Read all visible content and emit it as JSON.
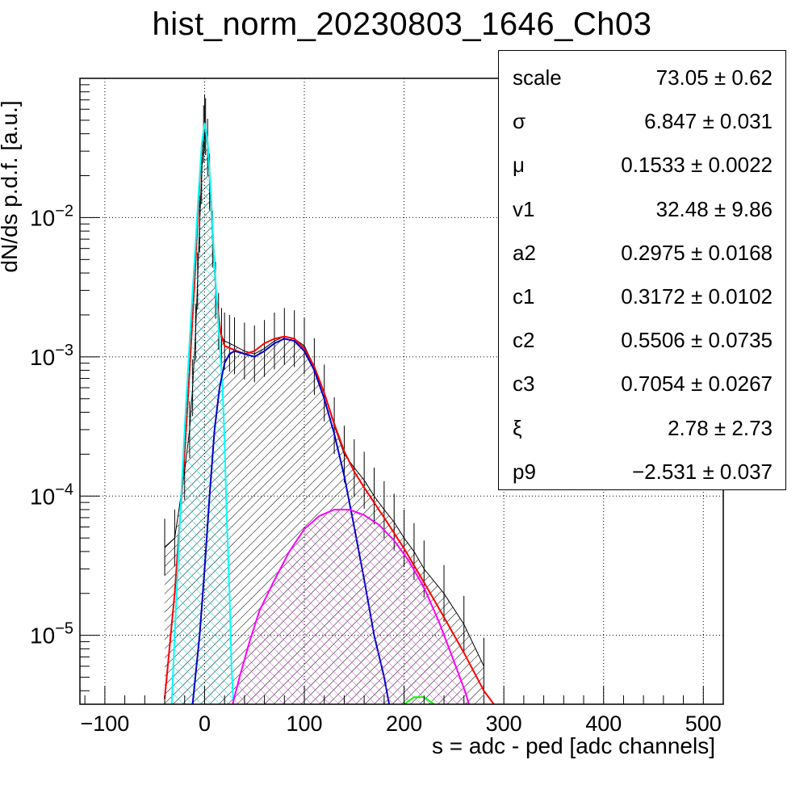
{
  "chart_data": {
    "type": "histogram",
    "title": "hist_norm_20230803_1646_Ch03",
    "xlabel": "s = adc - ped [adc channels]",
    "ylabel": "dN/ds p.d.f. [a.u.]",
    "xlim": [
      -125,
      520
    ],
    "ylim": [
      3.2e-06,
      0.1
    ],
    "yscale": "log",
    "grid": true,
    "x_ticks": [
      -100,
      0,
      100,
      200,
      300,
      400,
      500
    ],
    "x_tick_labels": [
      "−100",
      "0",
      "100",
      "200",
      "300",
      "400",
      "500"
    ],
    "y_ticks": [
      1e-05,
      0.0001,
      0.001,
      0.01
    ],
    "y_tick_labels": [
      {
        "base": "10",
        "exp": "−5"
      },
      {
        "base": "10",
        "exp": "−4"
      },
      {
        "base": "10",
        "exp": "−3"
      },
      {
        "base": "10",
        "exp": "−2"
      }
    ],
    "histogram": {
      "color": "#000000",
      "points": [
        [
          -40,
          4.3e-05
        ],
        [
          -30,
          5e-05
        ],
        [
          -20,
          0.00015
        ],
        [
          -15,
          0.0003
        ],
        [
          -12,
          0.0006
        ],
        [
          -9,
          0.0015
        ],
        [
          -7,
          0.0035
        ],
        [
          -5,
          0.009
        ],
        [
          -3,
          0.02
        ],
        [
          -1,
          0.04
        ],
        [
          0,
          0.048
        ],
        [
          1,
          0.045
        ],
        [
          3,
          0.032
        ],
        [
          5,
          0.018
        ],
        [
          8,
          0.007
        ],
        [
          11,
          0.003
        ],
        [
          14,
          0.0018
        ],
        [
          17,
          0.0014
        ],
        [
          20,
          0.0013
        ],
        [
          25,
          0.00125
        ],
        [
          30,
          0.0012
        ],
        [
          40,
          0.0011
        ],
        [
          50,
          0.00105
        ],
        [
          60,
          0.00115
        ],
        [
          70,
          0.0013
        ],
        [
          80,
          0.0014
        ],
        [
          90,
          0.00135
        ],
        [
          100,
          0.0012
        ],
        [
          110,
          0.00085
        ],
        [
          120,
          0.00055
        ],
        [
          130,
          0.00032
        ],
        [
          140,
          0.0002
        ],
        [
          150,
          0.00016
        ],
        [
          160,
          0.00013
        ],
        [
          170,
          0.0001
        ],
        [
          180,
          8e-05
        ],
        [
          190,
          6.5e-05
        ],
        [
          200,
          5e-05
        ],
        [
          210,
          4e-05
        ],
        [
          220,
          3e-05
        ],
        [
          240,
          2e-05
        ],
        [
          260,
          1.2e-05
        ],
        [
          280,
          6e-06
        ]
      ]
    },
    "series": [
      {
        "color": "#ff0000",
        "points": [
          [
            -40,
            3.5e-06
          ],
          [
            -30,
            2e-05
          ],
          [
            -20,
            0.0002
          ],
          [
            -15,
            0.0008
          ],
          [
            -10,
            0.0035
          ],
          [
            -6,
            0.013
          ],
          [
            -3,
            0.032
          ],
          [
            0,
            0.048
          ],
          [
            3,
            0.035
          ],
          [
            6,
            0.016
          ],
          [
            9,
            0.006
          ],
          [
            12,
            0.0026
          ],
          [
            16,
            0.0015
          ],
          [
            20,
            0.0012
          ],
          [
            30,
            0.00112
          ],
          [
            40,
            0.00105
          ],
          [
            50,
            0.0011
          ],
          [
            60,
            0.00125
          ],
          [
            70,
            0.00135
          ],
          [
            80,
            0.0014
          ],
          [
            90,
            0.00135
          ],
          [
            100,
            0.00115
          ],
          [
            110,
            0.00085
          ],
          [
            120,
            0.00055
          ],
          [
            130,
            0.00033
          ],
          [
            140,
            0.00021
          ],
          [
            150,
            0.00015
          ],
          [
            160,
            0.000115
          ],
          [
            180,
            7e-05
          ],
          [
            200,
            4.2e-05
          ],
          [
            220,
            2.4e-05
          ],
          [
            240,
            1.35e-05
          ],
          [
            260,
            7.5e-06
          ],
          [
            280,
            4e-06
          ],
          [
            290,
            3e-06
          ]
        ]
      },
      {
        "color": "#00ffff",
        "hatch": "#00d8d8",
        "points": [
          [
            -33,
            3.2e-06
          ],
          [
            -30,
            1e-05
          ],
          [
            -25,
            6e-05
          ],
          [
            -20,
            0.0003
          ],
          [
            -15,
            0.0013
          ],
          [
            -10,
            0.005
          ],
          [
            -6,
            0.015
          ],
          [
            -3,
            0.033
          ],
          [
            0,
            0.048
          ],
          [
            3,
            0.035
          ],
          [
            6,
            0.016
          ],
          [
            9,
            0.006
          ],
          [
            12,
            0.0026
          ],
          [
            15,
            0.0013
          ],
          [
            18,
            0.0006
          ],
          [
            20,
            0.00025
          ],
          [
            22,
            8e-05
          ],
          [
            25,
            2e-05
          ],
          [
            27,
            6e-06
          ],
          [
            29,
            3.2e-06
          ]
        ]
      },
      {
        "color": "#0000cc",
        "points": [
          [
            -12,
            3.2e-06
          ],
          [
            -5,
            1e-05
          ],
          [
            0,
            3e-05
          ],
          [
            5,
            0.0001
          ],
          [
            10,
            0.0003
          ],
          [
            15,
            0.0006
          ],
          [
            20,
            0.0009
          ],
          [
            25,
            0.00105
          ],
          [
            30,
            0.0011
          ],
          [
            40,
            0.00105
          ],
          [
            50,
            0.001
          ],
          [
            60,
            0.0011
          ],
          [
            70,
            0.00125
          ],
          [
            80,
            0.00135
          ],
          [
            90,
            0.0013
          ],
          [
            100,
            0.0011
          ],
          [
            110,
            0.0008
          ],
          [
            120,
            0.0005
          ],
          [
            130,
            0.00028
          ],
          [
            140,
            0.00014
          ],
          [
            150,
            6e-05
          ],
          [
            160,
            2.5e-05
          ],
          [
            170,
            1e-05
          ],
          [
            180,
            5e-06
          ],
          [
            185,
            3.2e-06
          ]
        ]
      },
      {
        "color": "#ff00ff",
        "hatch": "#d04fd0",
        "points": [
          [
            28,
            3.2e-06
          ],
          [
            35,
            5e-06
          ],
          [
            45,
            9e-06
          ],
          [
            55,
            1.5e-05
          ],
          [
            70,
            2.5e-05
          ],
          [
            85,
            4e-05
          ],
          [
            100,
            5.8e-05
          ],
          [
            115,
            7.2e-05
          ],
          [
            130,
            8e-05
          ],
          [
            145,
            8e-05
          ],
          [
            160,
            7.3e-05
          ],
          [
            175,
            6.2e-05
          ],
          [
            190,
            4.8e-05
          ],
          [
            205,
            3.4e-05
          ],
          [
            220,
            2.2e-05
          ],
          [
            235,
            1.25e-05
          ],
          [
            250,
            6.5e-06
          ],
          [
            262,
            3.8e-06
          ],
          [
            265,
            3.2e-06
          ]
        ]
      },
      {
        "color": "#00ff00",
        "points": [
          [
            200,
            3.2e-06
          ],
          [
            210,
            3.6e-06
          ],
          [
            220,
            3.6e-06
          ],
          [
            230,
            3.2e-06
          ]
        ]
      }
    ],
    "stats_box": {
      "placement": "top-right",
      "rows": [
        {
          "name": "scale",
          "value": "73.05 ± 0.62"
        },
        {
          "name": "σ",
          "value": "6.847 ± 0.031"
        },
        {
          "name": "μ",
          "value": "0.1533 ± 0.0022"
        },
        {
          "name": "v1",
          "value": "32.48 ± 9.86"
        },
        {
          "name": "a2",
          "value": "0.2975 ± 0.0168"
        },
        {
          "name": "c1",
          "value": "0.3172 ± 0.0102"
        },
        {
          "name": "c2",
          "value": "0.5506 ± 0.0735"
        },
        {
          "name": "c3",
          "value": "0.7054 ± 0.0267"
        },
        {
          "name": "ξ",
          "value": "2.78 ± 2.73"
        },
        {
          "name": "p9",
          "value": "−2.531 ± 0.037"
        }
      ]
    }
  }
}
